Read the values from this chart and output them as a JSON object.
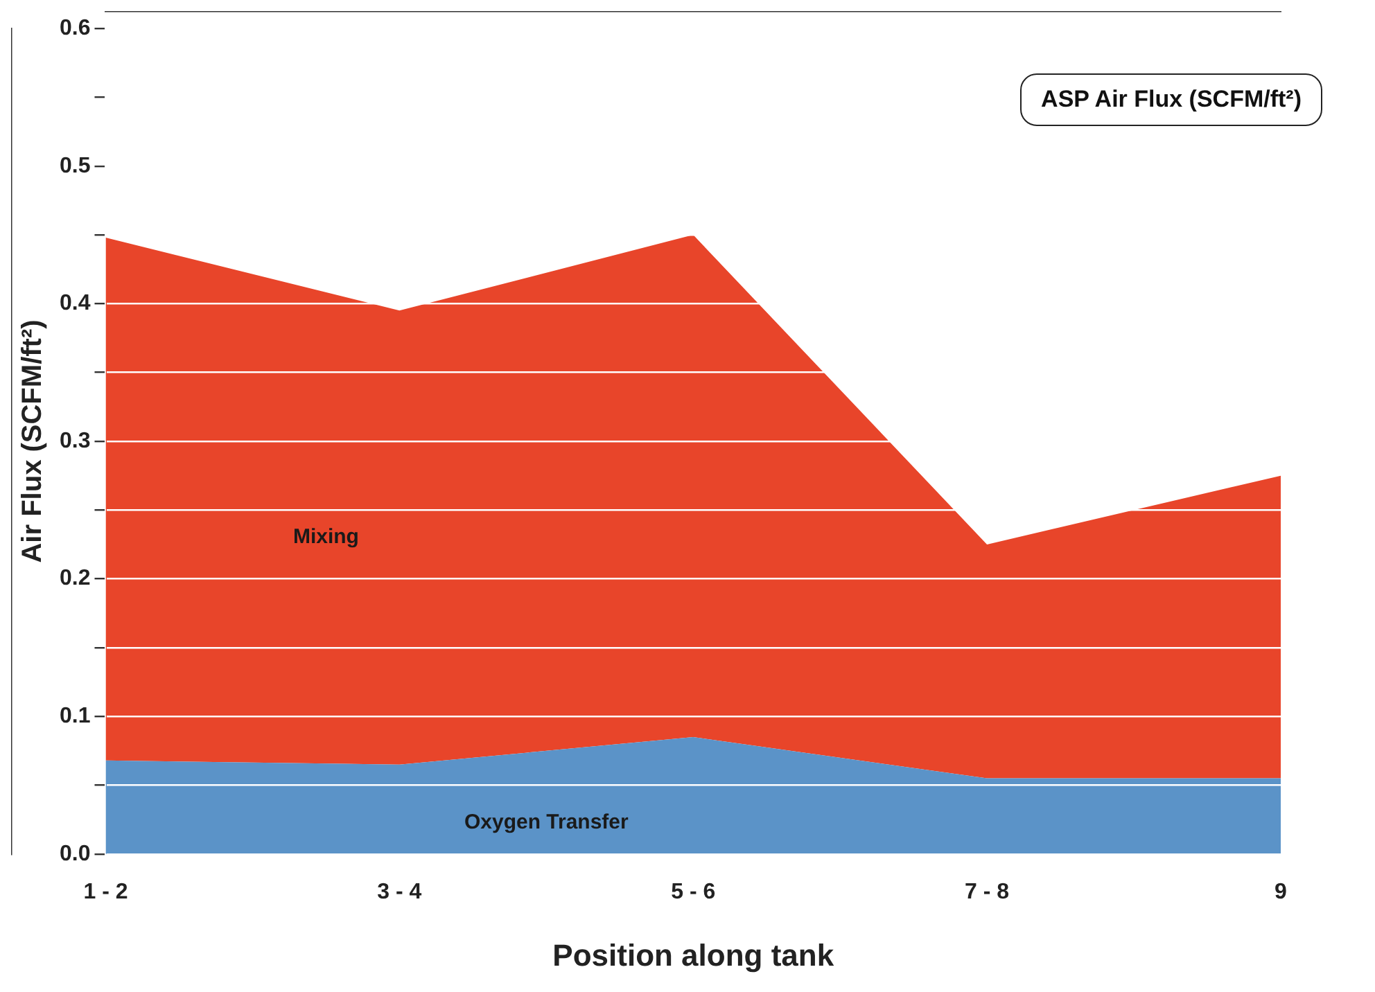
{
  "chart_data": {
    "type": "area",
    "stacked": true,
    "xlabel": "Position along tank",
    "ylabel": "Air Flux (SCFM/ft²)",
    "annotations": [
      "ASP Air Flux (SCFM/ft²)"
    ],
    "categories": [
      "1 - 2",
      "3 - 4",
      "5 - 6",
      "7 - 8",
      "9"
    ],
    "series": [
      {
        "name": "Oxygen Transfer",
        "color": "#5b93c8",
        "values": [
          0.068,
          0.065,
          0.085,
          0.055,
          0.055
        ]
      },
      {
        "name": "Mixing",
        "color": "#e8452a",
        "values": [
          0.38,
          0.33,
          0.365,
          0.17,
          0.22
        ]
      }
    ],
    "ylim": [
      0,
      0.6
    ],
    "yticks": [
      {
        "value": 0,
        "label": "0.0"
      },
      {
        "value": 0.05,
        "label": null
      },
      0.1,
      {
        "value": 0.15,
        "label": null
      },
      0.2,
      {
        "value": 0.25,
        "label": null
      },
      0.3,
      {
        "value": 0.35,
        "label": null
      },
      0.4,
      {
        "value": 0.45,
        "label": null
      },
      0.5,
      {
        "value": 0.55,
        "label": null
      },
      0.6
    ],
    "grid": "y",
    "legend": false
  }
}
